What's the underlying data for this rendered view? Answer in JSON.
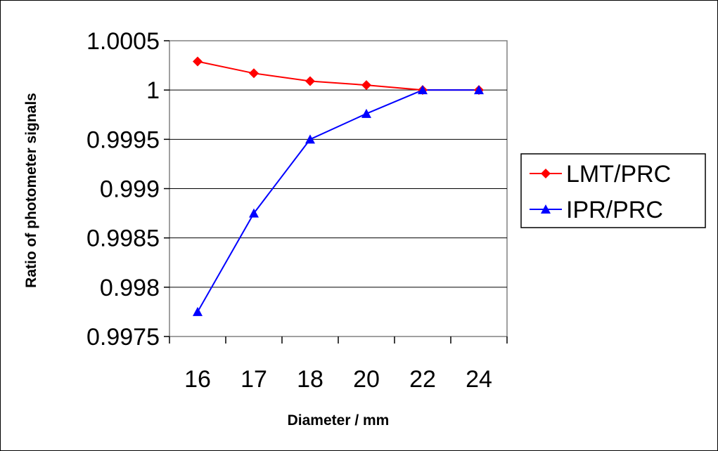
{
  "chart_data": {
    "type": "line",
    "categories": [
      "16",
      "17",
      "18",
      "20",
      "22",
      "24"
    ],
    "series": [
      {
        "name": "LMT/PRC",
        "values": [
          1.00029,
          1.00017,
          1.00009,
          1.00005,
          1.0,
          1.0
        ],
        "color": "#ff0000",
        "marker": "diamond"
      },
      {
        "name": "IPR/PRC",
        "values": [
          0.99775,
          0.99875,
          0.9995,
          0.99976,
          1.0,
          1.0
        ],
        "color": "#0000ff",
        "marker": "triangle"
      }
    ],
    "xlabel": "Diameter / mm",
    "ylabel": "Ratio of photometer signals",
    "ylim": [
      0.9975,
      1.0005
    ],
    "yticks": [
      "0.9975",
      "0.998",
      "0.9985",
      "0.999",
      "0.9995",
      "1",
      "1.0005"
    ],
    "grid": true,
    "legend": "right"
  }
}
